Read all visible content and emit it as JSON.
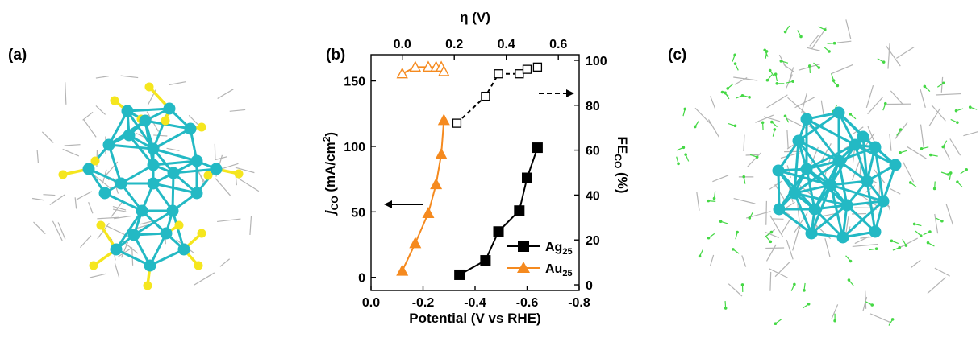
{
  "panels": {
    "a": "(a)",
    "b": "(b)",
    "c": "(c)"
  },
  "colors": {
    "ag": "#000000",
    "au": "#f58a1f",
    "metal": "#23b9c4",
    "sulfur": "#f5e61e",
    "ligand": "#b4b4b4",
    "fluorine": "#45d845"
  },
  "chart_data": {
    "type": "line",
    "xlabel": "Potential (V vs RHE)",
    "ylabel_left": "jCO (mA/cm2)",
    "ylabel_right": "FECO (%)",
    "xlabel_top": "η (V)",
    "xlim": [
      0.0,
      -0.8
    ],
    "ylim_left": [
      -10,
      170
    ],
    "ylim_right": [
      -2.5,
      102.5
    ],
    "xlim_top": [
      -0.12,
      0.68
    ],
    "x_ticks": [
      "0.0",
      "-0.2",
      "-0.4",
      "-0.6",
      "-0.8"
    ],
    "y_ticks_left": [
      "0",
      "50",
      "100",
      "150"
    ],
    "y_ticks_right": [
      "0",
      "20",
      "40",
      "60",
      "80",
      "100"
    ],
    "x_ticks_top": [
      "0.0",
      "0.2",
      "0.4",
      "0.6"
    ],
    "legend_position": "bottom-right",
    "grid": false,
    "series": [
      {
        "name": "Ag25",
        "axis": "left",
        "marker": "square-filled",
        "x": [
          -0.34,
          -0.44,
          -0.49,
          -0.57,
          -0.6,
          -0.64
        ],
        "y": [
          2,
          13,
          35,
          51,
          76,
          99
        ]
      },
      {
        "name": "Au25",
        "axis": "left",
        "marker": "triangle-filled",
        "x": [
          -0.12,
          -0.17,
          -0.22,
          -0.25,
          -0.27,
          -0.28
        ],
        "y": [
          5,
          26,
          49,
          71,
          94,
          120
        ]
      },
      {
        "axis": "right",
        "marker": "square-open",
        "color": "#000000",
        "dashed": true,
        "x": [
          -0.33,
          -0.44,
          -0.49,
          -0.57,
          -0.6,
          -0.64
        ],
        "y": [
          72,
          84,
          94,
          94,
          96,
          97
        ]
      },
      {
        "axis": "right",
        "marker": "triangle-open",
        "color": "#f58a1f",
        "dashed": false,
        "x": [
          -0.12,
          -0.17,
          -0.22,
          -0.25,
          -0.27,
          -0.28
        ],
        "y": [
          94,
          97,
          97,
          97,
          97,
          95
        ]
      }
    ],
    "arrows": [
      {
        "direction": "left",
        "points_to": "left-axis",
        "style": "solid"
      },
      {
        "direction": "right",
        "points_to": "right-axis",
        "style": "dashed"
      }
    ]
  }
}
